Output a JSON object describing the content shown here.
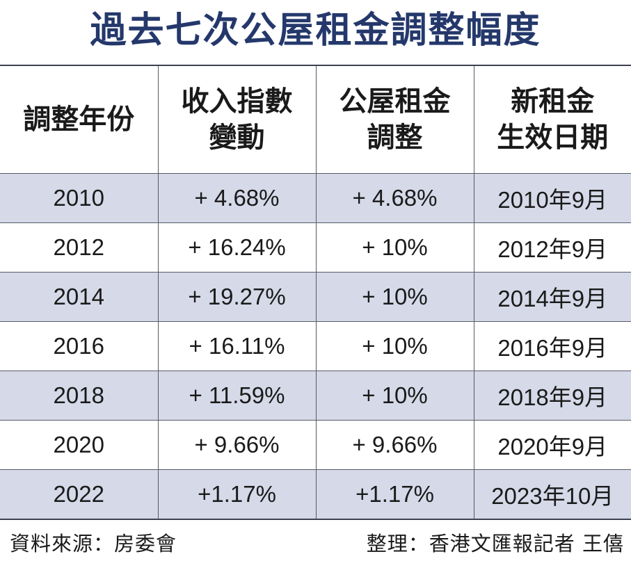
{
  "title": "過去七次公屋租金調整幅度",
  "chart_data": {
    "type": "table",
    "title": "過去七次公屋租金調整幅度",
    "columns": [
      [
        "調整年份"
      ],
      [
        "收入指數",
        "變動"
      ],
      [
        "公屋租金",
        "調整"
      ],
      [
        "新租金",
        "生效日期"
      ]
    ],
    "rows": [
      [
        "2010",
        "+ 4.68%",
        "+ 4.68%",
        "2010年9月"
      ],
      [
        "2012",
        "+ 16.24%",
        "+ 10%",
        "2012年9月"
      ],
      [
        "2014",
        "+ 19.27%",
        "+ 10%",
        "2014年9月"
      ],
      [
        "2016",
        "+ 16.11%",
        "+ 10%",
        "2016年9月"
      ],
      [
        "2018",
        "+ 11.59%",
        "+ 10%",
        "2018年9月"
      ],
      [
        "2020",
        "+ 9.66%",
        "+ 9.66%",
        "2020年9月"
      ],
      [
        "2022",
        "+1.17%",
        "+1.17%",
        "2023年10月"
      ]
    ],
    "row_shading": [
      "shade",
      "plain",
      "shade",
      "plain",
      "shade",
      "plain",
      "shade"
    ]
  },
  "footer": {
    "source": "資料來源：房委會",
    "credit": "整理：香港文匯報記者 王僖"
  },
  "colors": {
    "title": "#24386b",
    "row_shade": "#d5d9e8",
    "border": "#555a66"
  }
}
